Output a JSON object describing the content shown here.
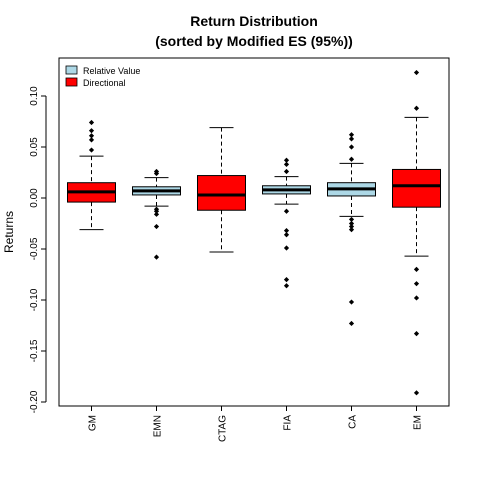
{
  "chart_data": {
    "type": "boxplot",
    "title_line1": "Return Distribution",
    "title_line2": "(sorted by Modified ES (95%))",
    "ylabel": "Returns",
    "ylim": [
      -0.2,
      0.125
    ],
    "yticks": [
      0.1,
      0.05,
      0.0,
      -0.05,
      -0.1,
      -0.15,
      -0.2
    ],
    "ytick_labels": [
      "0.10",
      "0.05",
      "0.00",
      "-0.05",
      "-0.10",
      "-0.15",
      "-0.20"
    ],
    "legend": [
      {
        "label": "Relative Value",
        "color": "#add8e6"
      },
      {
        "label": "Directional",
        "color": "#ff0000"
      }
    ],
    "legend_position": "top-left",
    "colors": {
      "relative_value": "#add8e6",
      "directional": "#ff0000"
    },
    "boxes": [
      {
        "category": "GM",
        "group": "directional",
        "whisker_low": -0.031,
        "q1": -0.004,
        "median": 0.006,
        "q3": 0.015,
        "whisker_high": 0.041,
        "outliers": [
          0.074,
          0.066,
          0.061,
          0.057,
          0.047
        ]
      },
      {
        "category": "EMN",
        "group": "relative_value",
        "whisker_low": -0.008,
        "q1": 0.003,
        "median": 0.007,
        "q3": 0.011,
        "whisker_high": 0.02,
        "outliers": [
          0.026,
          0.024,
          -0.011,
          -0.013,
          -0.016,
          -0.028,
          -0.058
        ]
      },
      {
        "category": "CTAG",
        "group": "directional",
        "whisker_low": -0.053,
        "q1": -0.012,
        "median": 0.003,
        "q3": 0.022,
        "whisker_high": 0.069,
        "outliers": []
      },
      {
        "category": "FIA",
        "group": "relative_value",
        "whisker_low": -0.006,
        "q1": 0.004,
        "median": 0.008,
        "q3": 0.012,
        "whisker_high": 0.021,
        "outliers": [
          0.037,
          0.033,
          0.026,
          -0.013,
          -0.032,
          -0.036,
          -0.049,
          -0.08,
          -0.086
        ]
      },
      {
        "category": "CA",
        "group": "relative_value",
        "whisker_low": -0.018,
        "q1": 0.002,
        "median": 0.009,
        "q3": 0.015,
        "whisker_high": 0.034,
        "outliers": [
          0.062,
          0.058,
          0.05,
          0.038,
          -0.021,
          -0.025,
          -0.028,
          -0.031,
          -0.102,
          -0.123
        ]
      },
      {
        "category": "EM",
        "group": "directional",
        "whisker_low": -0.057,
        "q1": -0.009,
        "median": 0.012,
        "q3": 0.028,
        "whisker_high": 0.079,
        "outliers": [
          0.123,
          0.088,
          -0.07,
          -0.084,
          -0.098,
          -0.133,
          -0.191
        ]
      }
    ]
  }
}
